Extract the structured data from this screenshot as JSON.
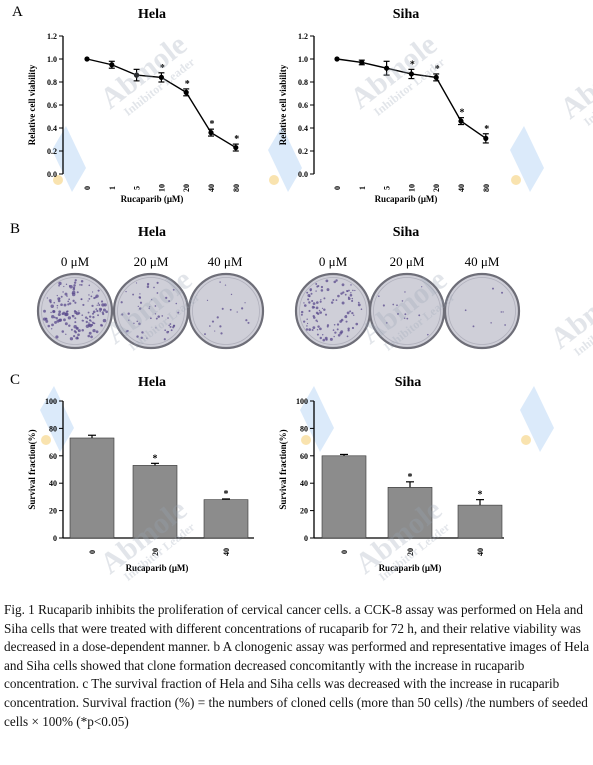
{
  "panels": {
    "A": "A",
    "B": "B",
    "C": "C"
  },
  "cell_lines": [
    "Hela",
    "Siha"
  ],
  "watermark": {
    "brand": "Abmole",
    "tagline": "Inhibitor Leader"
  },
  "dish_labels": [
    "0 μM",
    "20 μM",
    "40 μM"
  ],
  "colors": {
    "line": "#000000",
    "bar_fill": "#8c8c8c",
    "dish_rim": "#6e6e78",
    "dish_fill": "#cfcfd8",
    "colony": "#5a4a8c",
    "wm_blue": "#5aa0e6",
    "wm_gold": "#f2c14e"
  },
  "chart_data": [
    {
      "type": "line",
      "title": "Hela",
      "xlabel": "Rucaparib (μM)",
      "ylabel": "Relative cell viability",
      "categories": [
        "0",
        "1",
        "5",
        "10",
        "20",
        "40",
        "80"
      ],
      "values": [
        1.0,
        0.95,
        0.86,
        0.84,
        0.71,
        0.36,
        0.23
      ],
      "errors": [
        0.0,
        0.03,
        0.05,
        0.04,
        0.03,
        0.03,
        0.03
      ],
      "significant": [
        false,
        false,
        false,
        true,
        true,
        true,
        true
      ],
      "ylim": [
        0,
        1.2
      ],
      "yticks": [
        "0.0",
        "0.2",
        "0.4",
        "0.6",
        "0.8",
        "1.0",
        "1.2"
      ]
    },
    {
      "type": "line",
      "title": "Siha",
      "xlabel": "Rucaparib (μM)",
      "ylabel": "Relative cell viability",
      "categories": [
        "0",
        "1",
        "5",
        "10",
        "20",
        "40",
        "80"
      ],
      "values": [
        1.0,
        0.97,
        0.92,
        0.87,
        0.84,
        0.46,
        0.31
      ],
      "errors": [
        0.0,
        0.02,
        0.06,
        0.04,
        0.03,
        0.03,
        0.04
      ],
      "significant": [
        false,
        false,
        false,
        true,
        true,
        true,
        true
      ],
      "ylim": [
        0,
        1.2
      ],
      "yticks": [
        "0.0",
        "0.2",
        "0.4",
        "0.6",
        "0.8",
        "1.0",
        "1.2"
      ]
    },
    {
      "type": "bar",
      "title": "Hela",
      "xlabel": "Rucaparib (μM)",
      "ylabel": "Survival fraction(%)",
      "categories": [
        "0",
        "20",
        "40"
      ],
      "values": [
        73,
        53,
        28
      ],
      "errors": [
        2,
        1.5,
        0.5
      ],
      "significant": [
        false,
        true,
        true
      ],
      "ylim": [
        0,
        100
      ],
      "yticks": [
        "0",
        "20",
        "40",
        "60",
        "80",
        "100"
      ]
    },
    {
      "type": "bar",
      "title": "Siha",
      "xlabel": "Rucaparib (μM)",
      "ylabel": "Survival fraction(%)",
      "categories": [
        "0",
        "20",
        "40"
      ],
      "values": [
        60,
        37,
        24
      ],
      "errors": [
        1,
        4,
        4
      ],
      "significant": [
        false,
        true,
        true
      ],
      "ylim": [
        0,
        100
      ],
      "yticks": [
        "0",
        "20",
        "40",
        "60",
        "80",
        "100"
      ]
    }
  ],
  "caption": "Fig. 1 Rucaparib inhibits the proliferation of cervical cancer cells. a CCK-8 assay was performed on Hela and Siha cells that were treated with different concentrations of rucaparib for 72 h, and their relative viability was decreased in a dose-dependent manner. b A clonogenic assay was performed and representative images of Hela and Siha cells showed that clone formation decreased concomitantly with the increase in rucaparib concentration. c The survival fraction of Hela and Siha cells was decreased with the increase in rucaparib concentration. Survival fraction (%) = the numbers of cloned cells (more than 50 cells) /the numbers of seeded cells × 100% (*p<0.05)",
  "significance_mark": "*"
}
